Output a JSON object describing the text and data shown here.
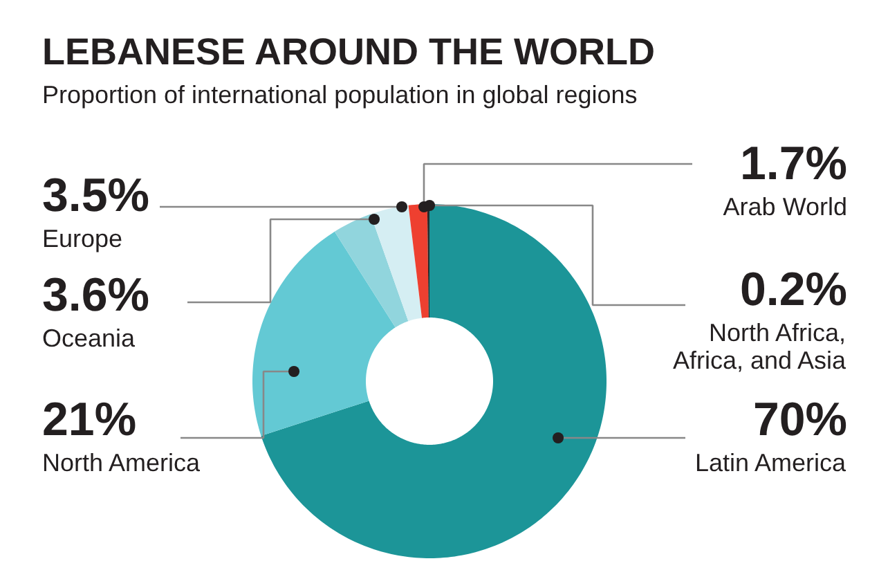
{
  "chart_data": {
    "type": "donut",
    "title": "LEBANESE AROUND THE WORLD",
    "subtitle": "Proportion of international population in global regions",
    "categories": [
      "Latin America",
      "North America",
      "Oceania",
      "Europe",
      "Arab World",
      "North Africa, Africa, and Asia"
    ],
    "values": [
      70,
      21,
      3.6,
      3.5,
      1.7,
      0.2
    ],
    "value_labels": [
      "70%",
      "21%",
      "3.6%",
      "3.5%",
      "1.7%",
      "0.2%"
    ],
    "colors": [
      "#1c9598",
      "#63c9d4",
      "#91d5dd",
      "#d5eef3",
      "#ee4030",
      "#2a2a2a"
    ]
  }
}
